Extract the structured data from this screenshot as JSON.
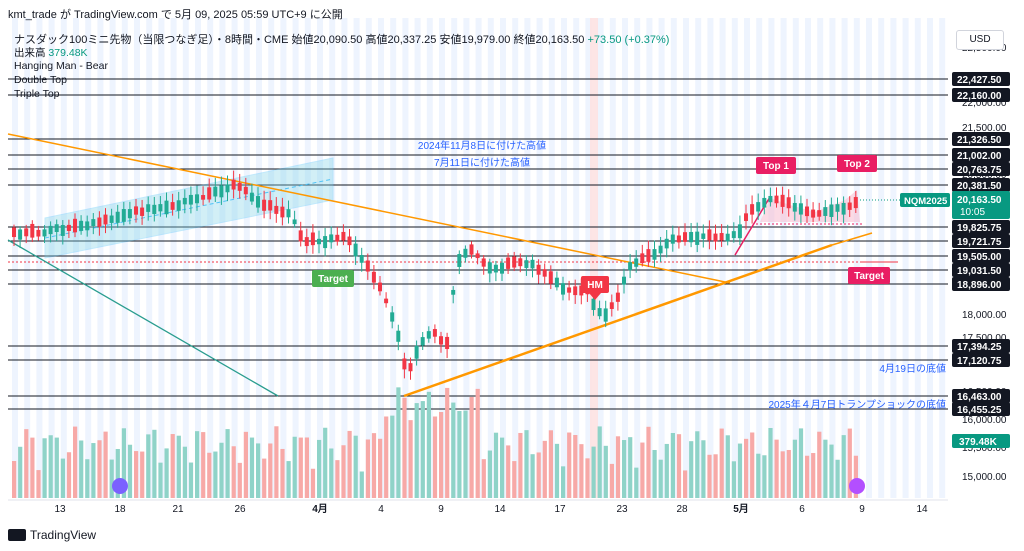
{
  "header": {
    "publish_line": "kmt_trade が TradingView.com で 5月 09, 2025 05:59 UTC+9 に公開",
    "symbol_title": "ナスダック100ミニ先物（当限つなぎ足）・8時間・CME",
    "open_label": "始値",
    "open": "20,090.50",
    "high_label": "高値",
    "high": "20,337.25",
    "low_label": "安値",
    "low": "19,979.00",
    "close_label": "終値",
    "close": "20,163.50",
    "change": "+73.50 (+0.37%)",
    "volume_label": "出来高",
    "volume": "379.48K",
    "patterns": [
      "Hanging Man - Bear",
      "Double Top",
      "Triple Top"
    ],
    "currency": "USD",
    "brand": "TradingView"
  },
  "chart_data": {
    "type": "candlestick",
    "price_axis_ticks": [
      "22,500.00",
      "22,000.00",
      "21,500.00",
      "20,500.00",
      "20,000.00",
      "19,500.00",
      "18,000.00",
      "17,500.00",
      "16,500.00",
      "16,000.00",
      "15,500.00",
      "15,000.00"
    ],
    "time_axis_ticks": [
      "13",
      "18",
      "21",
      "26",
      "4月",
      "4",
      "9",
      "14",
      "17",
      "23",
      "28",
      "5月",
      "6",
      "9",
      "14"
    ],
    "horizontal_levels": [
      {
        "label": "22,427.50"
      },
      {
        "label": "22,160.00"
      },
      {
        "label": "21,326.50"
      },
      {
        "label": "21,002.00"
      },
      {
        "label": "20,763.75"
      },
      {
        "label": "20,381.50"
      },
      {
        "label": "19,825.75"
      },
      {
        "label": "19,721.75"
      },
      {
        "label": "19,505.00"
      },
      {
        "label": "19,031.50"
      },
      {
        "label": "18,896.00"
      },
      {
        "label": "17,394.25"
      },
      {
        "label": "17,120.75"
      },
      {
        "label": "16,463.00"
      },
      {
        "label": "16,455.25"
      }
    ],
    "last_price": {
      "symbol": "NQM2025",
      "price": "20,163.50",
      "countdown": "10:05"
    },
    "volume_last": "379.48K",
    "annotations": {
      "high_2024": "2024年11月8日に付けた高値",
      "high_jul11": "7月11日に付けた高値",
      "low_apr19": "4月19日の底値",
      "low_trump": "2025年４月7日トランプショックの底値",
      "top1": "Top 1",
      "top2": "Top 2",
      "hm": "HM",
      "target_left": "Target",
      "target_right": "Target"
    },
    "colors": {
      "up": "#22ab94",
      "down": "#f23645",
      "vol_up": "#8fd3c8",
      "vol_down": "#f7a9a7",
      "orange": "#ff9800",
      "channel": "#7fd3e8",
      "teal_line": "#2a9d8f",
      "pink": "#e91e63",
      "green_tag": "#4caf50"
    }
  }
}
